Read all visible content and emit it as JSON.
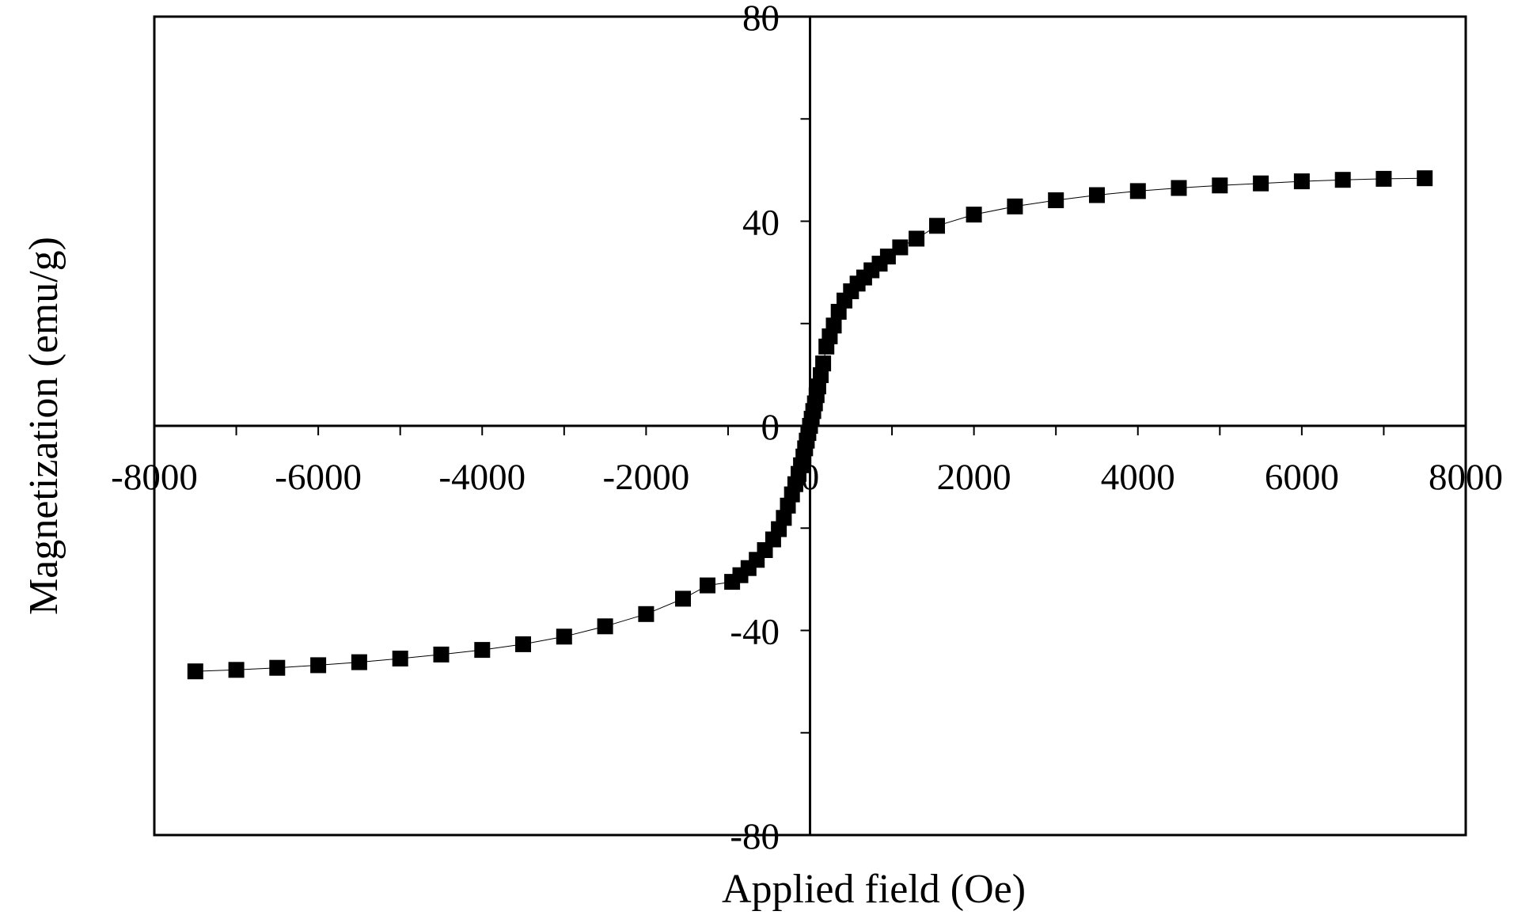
{
  "chart_data": {
    "type": "scatter",
    "title": "",
    "xlabel": "Applied field (Oe)",
    "ylabel": "Magnetization (emu/g)",
    "xlim": [
      -8000,
      8000
    ],
    "ylim": [
      -80,
      80
    ],
    "x_ticks": [
      -8000,
      -6000,
      -4000,
      -2000,
      0,
      2000,
      4000,
      6000,
      8000
    ],
    "x_tick_labels": [
      "-8000",
      "-6000",
      "-4000",
      "-2000",
      "0",
      "2000",
      "4000",
      "6000",
      "8000"
    ],
    "y_ticks": [
      -80,
      -40,
      0,
      40,
      80
    ],
    "y_tick_labels": [
      "-80",
      "-40",
      "0",
      "40",
      "80"
    ],
    "x_minor_ticks": [
      -7000,
      -5000,
      -3000,
      -1000,
      1000,
      3000,
      5000,
      7000
    ],
    "y_minor_ticks": [
      -60,
      -20,
      20,
      60
    ],
    "grid": false,
    "legend": "none",
    "axes_cross_at_origin": true,
    "marker": "filled-square",
    "connecting_line": true,
    "color": "#000000",
    "series": [
      {
        "x": [
          -7500,
          -7000,
          -6500,
          -6000,
          -5500,
          -5000,
          -4500,
          -4000,
          -3500,
          -3000,
          -2500,
          -2000,
          -1550,
          -1250,
          -950,
          -850,
          -750,
          -650,
          -550,
          -450,
          -380,
          -320,
          -270,
          -220,
          -180,
          -140,
          -110,
          -80,
          -60,
          -40,
          -20,
          0,
          20,
          40,
          60,
          80,
          100,
          130,
          160,
          200,
          240,
          290,
          350,
          420,
          500,
          580,
          660,
          750,
          850,
          950,
          1100,
          1300,
          1550,
          2000,
          2500,
          3000,
          3500,
          4000,
          4500,
          5000,
          5500,
          6000,
          6500,
          7000,
          7500
        ],
        "y": [
          -48.0,
          -47.7,
          -47.3,
          -46.8,
          -46.2,
          -45.5,
          -44.7,
          -43.8,
          -42.7,
          -41.2,
          -39.2,
          -36.8,
          -33.8,
          -31.2,
          -30.5,
          -29.2,
          -27.8,
          -26.2,
          -24.3,
          -22.2,
          -20.2,
          -18.0,
          -15.6,
          -13.4,
          -11.4,
          -9.4,
          -7.7,
          -6.0,
          -4.4,
          -2.9,
          -1.4,
          0.0,
          1.4,
          2.9,
          4.4,
          6.0,
          7.7,
          9.9,
          12.2,
          15.5,
          17.5,
          19.6,
          22.3,
          24.5,
          26.3,
          27.8,
          29.0,
          30.4,
          31.7,
          33.1,
          34.9,
          36.6,
          39.1,
          41.3,
          42.9,
          44.1,
          45.1,
          45.9,
          46.5,
          47.0,
          47.4,
          47.8,
          48.1,
          48.3,
          48.4
        ]
      }
    ]
  }
}
